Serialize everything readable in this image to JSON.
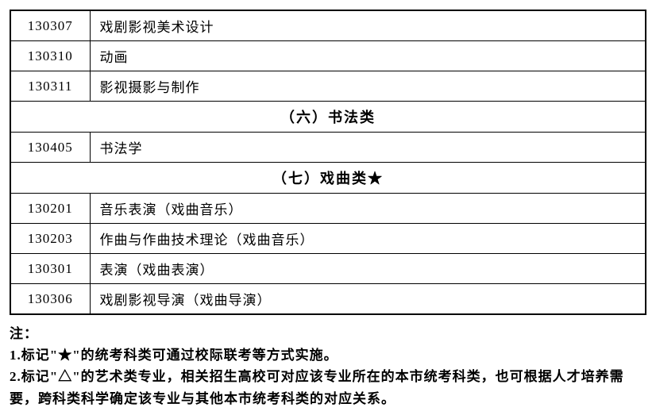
{
  "table": {
    "rows": [
      {
        "type": "data",
        "code": "130307",
        "name": "戏剧影视美术设计"
      },
      {
        "type": "data",
        "code": "130310",
        "name": "动画"
      },
      {
        "type": "data",
        "code": "130311",
        "name": "影视摄影与制作"
      },
      {
        "type": "header",
        "label": "（六）书法类"
      },
      {
        "type": "data",
        "code": "130405",
        "name": "书法学"
      },
      {
        "type": "header",
        "label": "（七）戏曲类★"
      },
      {
        "type": "data",
        "code": "130201",
        "name": "音乐表演（戏曲音乐）"
      },
      {
        "type": "data",
        "code": "130203",
        "name": "作曲与作曲技术理论（戏曲音乐）"
      },
      {
        "type": "data",
        "code": "130301",
        "name": "表演（戏曲表演）"
      },
      {
        "type": "data",
        "code": "130306",
        "name": "戏剧影视导演（戏曲导演）"
      }
    ]
  },
  "notes": {
    "title": "注：",
    "line1": "1.标记\"★\"的统考科类可通过校际联考等方式实施。",
    "line2": "2.标记\"△\"的艺术类专业，相关招生高校可对应该专业所在的本市统考科类，也可根据人才培养需要，跨科类科学确定该专业与其他本市统考科类的对应关系。"
  },
  "style": {
    "background_color": "#ffffff",
    "border_color": "#000000",
    "font_family": "SimSun",
    "cell_fontsize": 17,
    "header_fontsize": 18,
    "notes_fontsize": 17,
    "code_col_width": 100
  }
}
